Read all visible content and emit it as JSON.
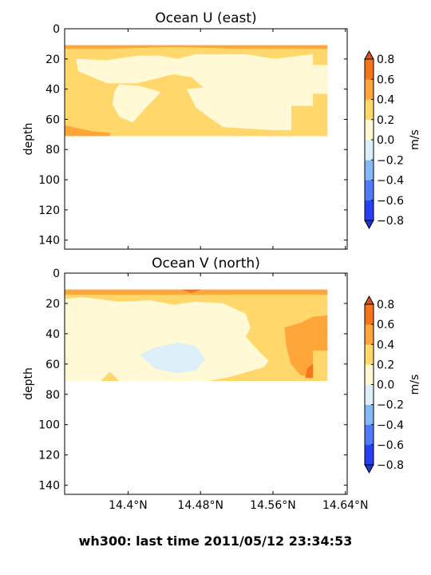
{
  "figure": {
    "suptitle": "wh300: last time 2011/05/12 23:34:53"
  },
  "chart_data": [
    {
      "type": "heatmap",
      "subtype": "filled-contour",
      "title": "Ocean U (east)",
      "ylabel": "depth",
      "y_inverted": true,
      "ylim": [
        146,
        0
      ],
      "y_ticks": [
        "0",
        "20",
        "40",
        "60",
        "80",
        "100",
        "120",
        "140"
      ],
      "y_tick_values": [
        0,
        20,
        40,
        60,
        80,
        100,
        120,
        140
      ],
      "xlim": [
        14.33,
        14.642
      ],
      "x_tick_values": [
        14.4,
        14.48,
        14.56,
        14.64
      ],
      "x_ticks": [
        "14.4°N",
        "14.48°N",
        "14.56°N",
        "14.64°N"
      ],
      "show_x_ticklabels": false,
      "colorbar": {
        "label": "m/s",
        "levels": [
          -0.8,
          -0.6,
          -0.4,
          -0.2,
          0.0,
          0.2,
          0.4,
          0.6,
          0.8
        ],
        "tick_labels": [
          "0.8",
          "0.6",
          "0.4",
          "0.2",
          "0.0",
          "−0.2",
          "−0.4",
          "−0.6",
          "−0.8"
        ],
        "colors": [
          "#2840f0",
          "#4f7af8",
          "#86b8f8",
          "#ddf0fa",
          "#fff9d6",
          "#ffd76a",
          "#ffa63a",
          "#f5761a"
        ],
        "extend": "both",
        "over_color": "#d6541a",
        "under_color": "#1e34d0"
      },
      "data_extent": {
        "x": [
          14.33,
          14.62
        ],
        "depth": [
          11,
          71
        ]
      },
      "regions": [
        {
          "range": [
            0.2,
            0.4
          ],
          "points": [
            [
              14.33,
              11
            ],
            [
              14.62,
              11
            ],
            [
              14.62,
              71
            ],
            [
              14.33,
              71
            ]
          ]
        },
        {
          "range": [
            0.4,
            0.6
          ],
          "points": [
            [
              14.33,
              11
            ],
            [
              14.62,
              11
            ],
            [
              14.62,
              13
            ],
            [
              14.52,
              13
            ],
            [
              14.45,
              12
            ],
            [
              14.38,
              13
            ],
            [
              14.33,
              13
            ]
          ]
        },
        {
          "range": [
            0.4,
            0.6
          ],
          "points": [
            [
              14.6,
              11
            ],
            [
              14.62,
              11
            ],
            [
              14.62,
              13
            ],
            [
              14.6,
              13
            ]
          ]
        },
        {
          "range": [
            0.4,
            0.6
          ],
          "points": [
            [
              14.33,
              64
            ],
            [
              14.345,
              66
            ],
            [
              14.36,
              68
            ],
            [
              14.38,
              69
            ],
            [
              14.38,
              71
            ],
            [
              14.33,
              71
            ]
          ]
        },
        {
          "range": [
            0.0,
            0.2
          ],
          "points": [
            [
              14.343,
              20
            ],
            [
              14.375,
              21
            ],
            [
              14.41,
              18
            ],
            [
              14.435,
              18
            ],
            [
              14.455,
              20
            ],
            [
              14.475,
              17
            ],
            [
              14.53,
              17
            ],
            [
              14.562,
              20
            ],
            [
              14.604,
              17
            ],
            [
              14.604,
              24
            ],
            [
              14.62,
              24
            ],
            [
              14.62,
              43
            ],
            [
              14.604,
              43
            ],
            [
              14.604,
              51
            ],
            [
              14.58,
              51
            ],
            [
              14.58,
              67
            ],
            [
              14.56,
              67
            ],
            [
              14.505,
              65
            ],
            [
              14.488,
              58
            ],
            [
              14.475,
              52
            ],
            [
              14.465,
              40
            ],
            [
              14.505,
              38
            ],
            [
              14.523,
              37
            ],
            [
              14.52,
              43
            ],
            [
              14.49,
              42
            ],
            [
              14.47,
              32
            ],
            [
              14.45,
              30
            ],
            [
              14.41,
              36
            ],
            [
              14.377,
              36
            ],
            [
              14.345,
              28
            ]
          ]
        },
        {
          "range": [
            0.0,
            0.2
          ],
          "points": [
            [
              14.39,
              37
            ],
            [
              14.413,
              38
            ],
            [
              14.436,
              42
            ],
            [
              14.42,
              52
            ],
            [
              14.405,
              62
            ],
            [
              14.39,
              58
            ],
            [
              14.383,
              50
            ],
            [
              14.385,
              42
            ]
          ]
        }
      ]
    },
    {
      "type": "heatmap",
      "subtype": "filled-contour",
      "title": "Ocean V (north)",
      "ylabel": "depth",
      "y_inverted": true,
      "ylim": [
        146,
        0
      ],
      "y_ticks": [
        "0",
        "20",
        "40",
        "60",
        "80",
        "100",
        "120",
        "140"
      ],
      "y_tick_values": [
        0,
        20,
        40,
        60,
        80,
        100,
        120,
        140
      ],
      "xlim": [
        14.33,
        14.642
      ],
      "x_tick_values": [
        14.4,
        14.48,
        14.56,
        14.64
      ],
      "x_ticks": [
        "14.4°N",
        "14.48°N",
        "14.56°N",
        "14.64°N"
      ],
      "show_x_ticklabels": true,
      "colorbar": {
        "label": "m/s",
        "levels": [
          -0.8,
          -0.6,
          -0.4,
          -0.2,
          0.0,
          0.2,
          0.4,
          0.6,
          0.8
        ],
        "tick_labels": [
          "0.8",
          "0.6",
          "0.4",
          "0.2",
          "0.0",
          "−0.2",
          "−0.4",
          "−0.6",
          "−0.8"
        ],
        "colors": [
          "#2840f0",
          "#4f7af8",
          "#86b8f8",
          "#ddf0fa",
          "#fff9d6",
          "#ffd76a",
          "#ffa63a",
          "#f5761a"
        ],
        "extend": "both",
        "over_color": "#d6541a",
        "under_color": "#1e34d0"
      },
      "data_extent": {
        "x": [
          14.33,
          14.62
        ],
        "depth": [
          11,
          71
        ]
      },
      "regions": [
        {
          "range": [
            0.2,
            0.4
          ],
          "points": [
            [
              14.33,
              11
            ],
            [
              14.62,
              11
            ],
            [
              14.62,
              71
            ],
            [
              14.33,
              71
            ]
          ]
        },
        {
          "range": [
            0.4,
            0.6
          ],
          "points": [
            [
              14.33,
              11
            ],
            [
              14.62,
              11
            ],
            [
              14.62,
              14
            ],
            [
              14.33,
              14
            ]
          ]
        },
        {
          "range": [
            0.6,
            0.8
          ],
          "points": [
            [
              14.46,
              11
            ],
            [
              14.48,
              11
            ],
            [
              14.47,
              13
            ]
          ]
        },
        {
          "range": [
            0.0,
            0.2
          ],
          "points": [
            [
              14.33,
              17
            ],
            [
              14.35,
              16
            ],
            [
              14.39,
              19
            ],
            [
              14.425,
              18
            ],
            [
              14.45,
              21
            ],
            [
              14.475,
              19
            ],
            [
              14.505,
              20
            ],
            [
              14.53,
              27
            ],
            [
              14.535,
              36
            ],
            [
              14.53,
              42
            ],
            [
              14.545,
              52
            ],
            [
              14.555,
              58
            ],
            [
              14.55,
              62
            ],
            [
              14.515,
              68
            ],
            [
              14.49,
              71
            ],
            [
              14.39,
              71
            ],
            [
              14.38,
              65
            ],
            [
              14.37,
              71
            ],
            [
              14.33,
              71
            ]
          ]
        },
        {
          "range": [
            -0.2,
            0.0
          ],
          "points": [
            [
              14.413,
              54
            ],
            [
              14.43,
              49
            ],
            [
              14.455,
              46
            ],
            [
              14.475,
              48
            ],
            [
              14.485,
              57
            ],
            [
              14.475,
              64
            ],
            [
              14.455,
              66
            ],
            [
              14.43,
              63
            ]
          ]
        },
        {
          "range": [
            0.4,
            0.6
          ],
          "points": [
            [
              14.573,
              36
            ],
            [
              14.59,
              33
            ],
            [
              14.604,
              29
            ],
            [
              14.62,
              28
            ],
            [
              14.62,
              51
            ],
            [
              14.604,
              51
            ],
            [
              14.604,
              69
            ],
            [
              14.59,
              67
            ],
            [
              14.58,
              60
            ],
            [
              14.575,
              48
            ]
          ]
        },
        {
          "range": [
            0.6,
            0.8
          ],
          "points": [
            [
              14.598,
              63
            ],
            [
              14.604,
              60
            ],
            [
              14.604,
              69
            ],
            [
              14.596,
              69
            ]
          ]
        }
      ]
    }
  ]
}
